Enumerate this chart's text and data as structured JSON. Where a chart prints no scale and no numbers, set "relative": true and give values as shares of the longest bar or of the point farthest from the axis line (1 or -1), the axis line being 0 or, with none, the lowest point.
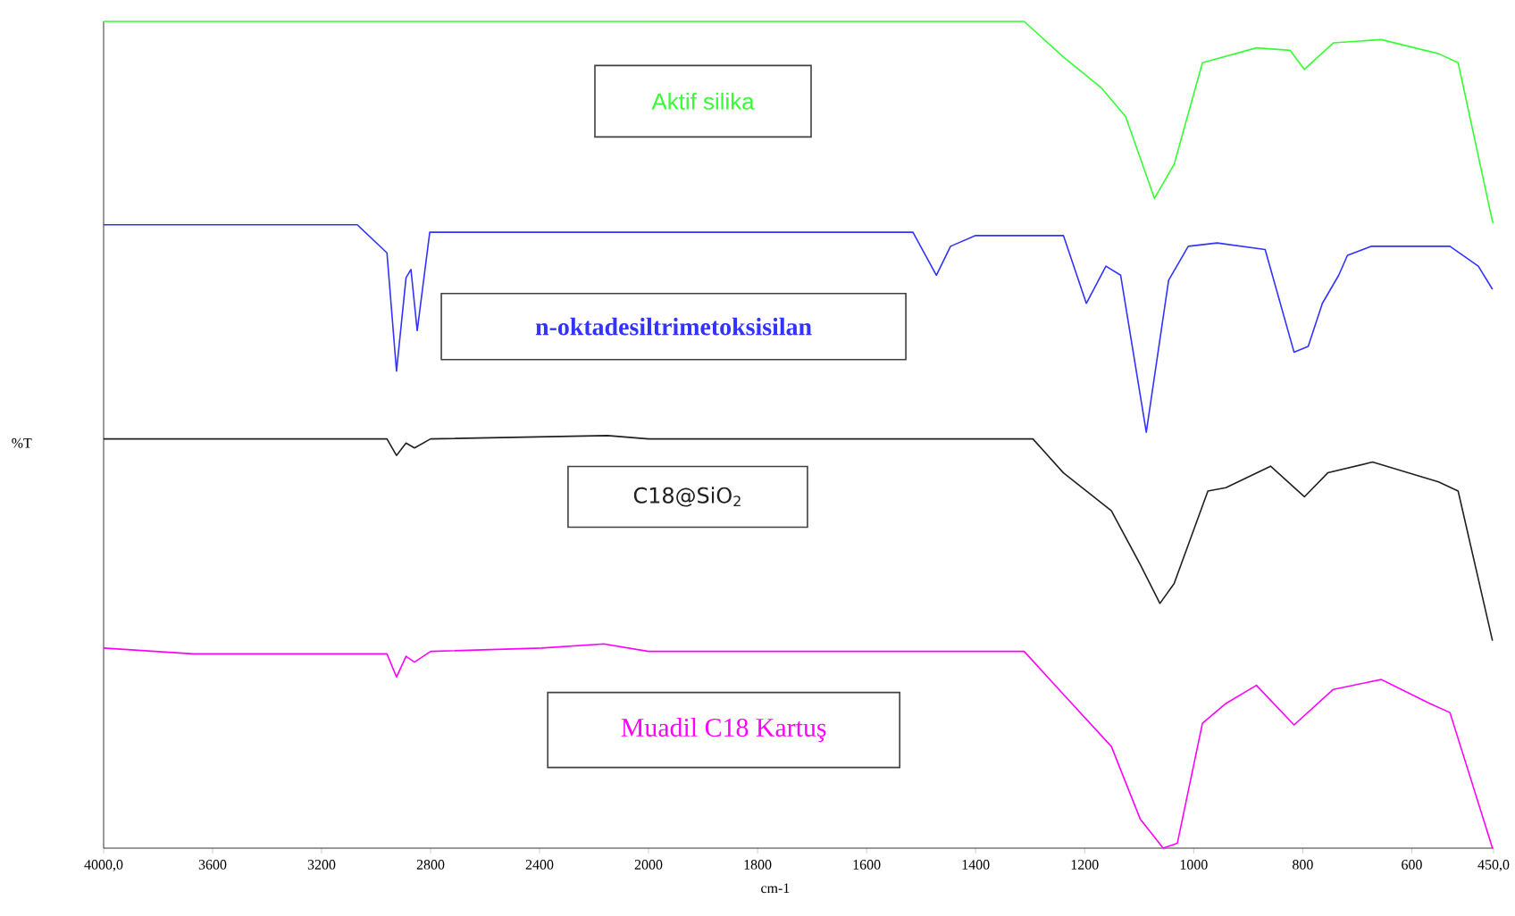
{
  "chart_data": [
    {
      "type": "line",
      "relative": true,
      "ylabel": "%T",
      "xlim": [
        4000,
        2000
      ],
      "xticks": [
        {
          "value": 4000,
          "label": "4000,0"
        },
        3600,
        3200,
        2800,
        2400
      ],
      "series": [
        {
          "name": "Aktif silika",
          "color": "#33ff33",
          "x": [
            4000,
            3500,
            3000,
            2500,
            2000
          ],
          "values": [
            1.0,
            1.0,
            1.0,
            1.0,
            1.0
          ]
        },
        {
          "name": "n-oktadesiltrimetoksisilan",
          "color": "#3333ff",
          "x": [
            4000,
            3500,
            3069,
            2960,
            2925,
            2890,
            2872,
            2849,
            2803,
            2500,
            2000
          ],
          "values": [
            0.754,
            0.754,
            0.754,
            0.72,
            0.577,
            0.69,
            0.7,
            0.626,
            0.745,
            0.745,
            0.745
          ]
        },
        {
          "name": "C18@SiO$_{2}$",
          "color": "#202020",
          "x": [
            4000,
            3500,
            2960,
            2925,
            2890,
            2859,
            2800,
            2151,
            2000
          ],
          "values": [
            0.495,
            0.495,
            0.495,
            0.475,
            0.49,
            0.484,
            0.495,
            0.499,
            0.495
          ]
        },
        {
          "name": "Muadil C18 Kartuş",
          "color": "#ff00ff",
          "x": [
            4000,
            3672,
            2960,
            2925,
            2890,
            2859,
            2800,
            2393,
            2164,
            2000
          ],
          "values": [
            0.242,
            0.235,
            0.235,
            0.207,
            0.232,
            0.225,
            0.238,
            0.242,
            0.247,
            0.238
          ]
        }
      ]
    },
    {
      "type": "line",
      "relative": true,
      "xlabel": "cm-1",
      "xlim": [
        2000,
        450
      ],
      "xticks": [
        2000,
        1800,
        1600,
        1400,
        1200,
        1000,
        800,
        600,
        {
          "value": 450,
          "label": "450,0"
        }
      ],
      "series": [
        {
          "color": "#33ff33",
          "x": [
            2000,
            1500,
            1311,
            1239,
            1170,
            1125,
            1072,
            1036,
            984,
            885,
            823,
            797,
            744,
            656,
            551,
            515,
            452,
            450
          ],
          "values": [
            1.0,
            1.0,
            1.0,
            0.957,
            0.92,
            0.885,
            0.786,
            0.827,
            0.95,
            0.968,
            0.965,
            0.942,
            0.974,
            0.978,
            0.961,
            0.95,
            0.758,
            0.756
          ]
        },
        {
          "color": "#3333ff",
          "x": [
            2000,
            1515,
            1472,
            1446,
            1400,
            1239,
            1197,
            1161,
            1134,
            1087,
            1046,
            1010,
            957,
            869,
            816,
            790,
            764,
            734,
            718,
            674,
            530,
            478,
            452
          ],
          "values": [
            0.745,
            0.745,
            0.693,
            0.728,
            0.741,
            0.741,
            0.659,
            0.704,
            0.693,
            0.503,
            0.687,
            0.728,
            0.732,
            0.724,
            0.6,
            0.607,
            0.659,
            0.693,
            0.717,
            0.728,
            0.728,
            0.704,
            0.676
          ]
        },
        {
          "color": "#202020",
          "x": [
            2000,
            1800,
            1295,
            1239,
            1151,
            1098,
            1062,
            1036,
            974,
            941,
            859,
            797,
            754,
            672,
            551,
            515,
            452
          ],
          "values": [
            0.495,
            0.495,
            0.495,
            0.454,
            0.408,
            0.343,
            0.296,
            0.32,
            0.432,
            0.436,
            0.462,
            0.425,
            0.454,
            0.467,
            0.443,
            0.432,
            0.251
          ]
        },
        {
          "color": "#ff00ff",
          "x": [
            2000,
            1311,
            1239,
            1151,
            1098,
            1056,
            1030,
            984,
            941,
            885,
            816,
            744,
            656,
            567,
            530,
            452
          ],
          "values": [
            0.238,
            0.238,
            0.186,
            0.123,
            0.035,
            0.0,
            0.006,
            0.151,
            0.175,
            0.197,
            0.149,
            0.192,
            0.204,
            0.175,
            0.164,
            0.0
          ]
        }
      ]
    }
  ]
}
